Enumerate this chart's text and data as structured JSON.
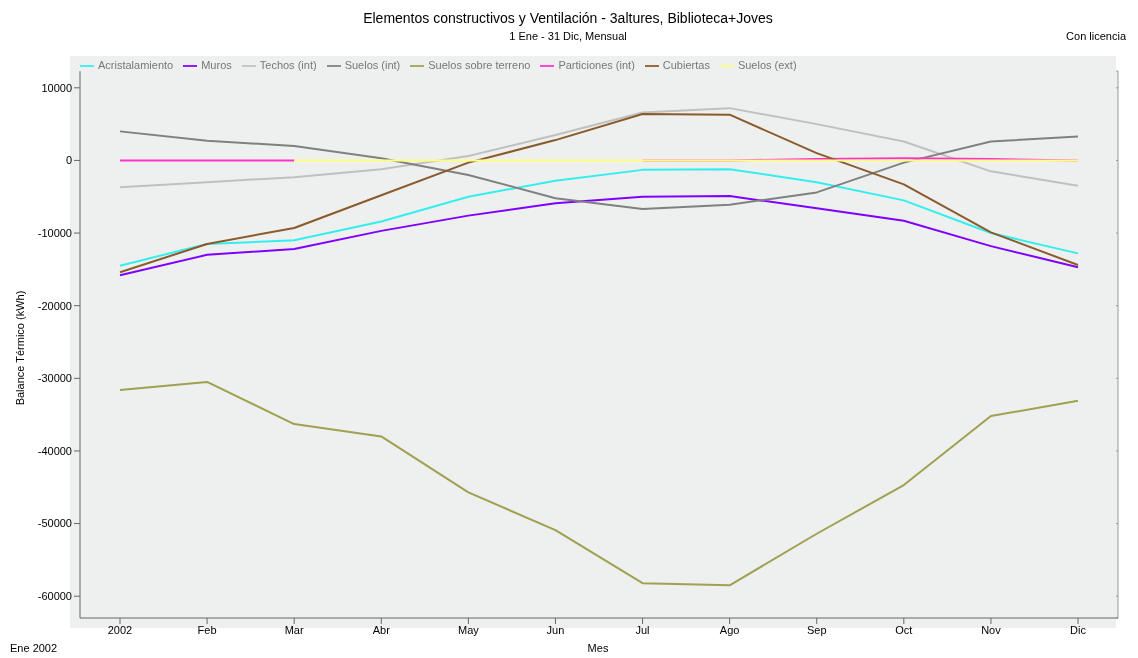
{
  "chart_data": {
    "type": "line",
    "title": "Elementos constructivos y Ventilación - 3altures, Biblioteca+Joves",
    "subtitle": "1 Ene - 31 Dic, Mensual",
    "xlabel": "Mes",
    "ylabel": "Balance Térmico (kWh)",
    "annotations": [
      "Con licencia",
      "Ene 2002"
    ],
    "categories": [
      "2002",
      "Feb",
      "Mar",
      "Abr",
      "May",
      "Jun",
      "Jul",
      "Ago",
      "Sep",
      "Oct",
      "Nov",
      "Dic"
    ],
    "series": [
      {
        "name": "Acristalamiento",
        "color": "#33eeee",
        "values": [
          -14500,
          -11500,
          -11000,
          -8400,
          -5000,
          -2800,
          -1300,
          -1200,
          -3000,
          -5500,
          -10000,
          -12800
        ]
      },
      {
        "name": "Muros",
        "color": "#8000ff",
        "values": [
          -15800,
          -13000,
          -12200,
          -9700,
          -7600,
          -5900,
          -5000,
          -4900,
          -6600,
          -8300,
          -11800,
          -14700
        ]
      },
      {
        "name": "Techos (int)",
        "color": "#c0c0c0",
        "values": [
          -3700,
          -3000,
          -2300,
          -1200,
          600,
          3500,
          6600,
          7200,
          5000,
          2600,
          -1500,
          -3500
        ]
      },
      {
        "name": "Suelos (int)",
        "color": "#808080",
        "values": [
          4000,
          2700,
          2000,
          300,
          -2000,
          -5200,
          -6700,
          -6100,
          -4400,
          -300,
          2600,
          3300
        ]
      },
      {
        "name": "Suelos sobre terreno",
        "color": "#a0a050",
        "values": [
          -31600,
          -30500,
          -36300,
          -38000,
          -45700,
          -50900,
          -58200,
          -58500,
          -51400,
          -44700,
          -35200,
          -33100
        ]
      },
      {
        "name": "Particiones (int)",
        "color": "#ff33cc",
        "values": [
          0,
          0,
          0,
          null,
          null,
          null,
          0,
          0,
          200,
          300,
          200,
          0
        ]
      },
      {
        "name": "Cubiertas",
        "color": "#8b5a2b",
        "values": [
          -15400,
          -11500,
          -9300,
          -4800,
          -300,
          2800,
          6400,
          6300,
          1000,
          -3300,
          -9900,
          -14400
        ]
      },
      {
        "name": "Suelos (ext)",
        "color": "#ffff80",
        "values": [
          null,
          null,
          0,
          0,
          0,
          0,
          0,
          0,
          0,
          0,
          0,
          0
        ]
      }
    ],
    "ylim": [
      -63000,
      12300
    ],
    "yticks": [
      -60000,
      -50000,
      -40000,
      -30000,
      -20000,
      -10000,
      0,
      10000
    ],
    "grid": true,
    "legend": "top",
    "marker": "none",
    "line_style": "solid"
  }
}
